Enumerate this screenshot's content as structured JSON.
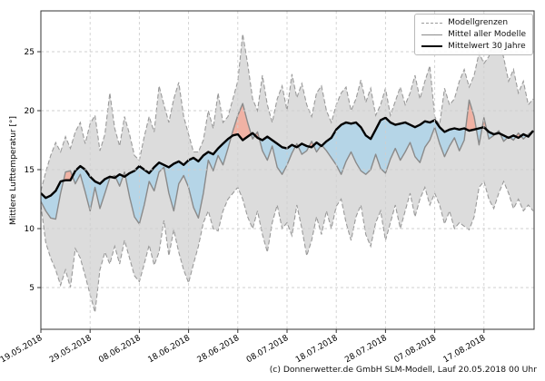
{
  "figure": {
    "copyright": "(c) Donnerwetter.de GmbH SLM-Modell, Lauf 20.05.2018 00 Uhr"
  },
  "chart_data": {
    "type": "line",
    "title": "",
    "xlabel": "",
    "ylabel": "Mittlere Lufttemperatur [°]",
    "ylim": [
      1.5,
      28.5
    ],
    "yticks": [
      5,
      10,
      15,
      20,
      25
    ],
    "grid": true,
    "x_start_label": "19.05.2018",
    "x_step_days": 1,
    "x_tick_day_index": [
      0,
      10,
      20,
      30,
      40,
      50,
      60,
      70,
      80,
      90
    ],
    "x_tick_labels": [
      "19.05.2018",
      "29.05.2018",
      "08.06.2018",
      "18.06.2018",
      "28.06.2018",
      "08.07.2018",
      "18.07.2018",
      "28.07.2018",
      "07.08.2018",
      "17.08.2018"
    ],
    "legend": {
      "position": "upper right",
      "entries": [
        {
          "label": "Modellgrenzen",
          "style": "dashed-gray"
        },
        {
          "label": "Mittel aller Modelle",
          "style": "solid-gray"
        },
        {
          "label": "Mittelwert 30 Jahre",
          "style": "solid-black-thick"
        }
      ]
    },
    "fills": {
      "band_color": "#dcdcdc",
      "above_normal_color": "#f0b2a4",
      "below_normal_color": "#b5d5e7"
    },
    "colors": {
      "bounds_line": "#9a9a9a",
      "model_mean_line": "#8a8a8a",
      "mean30_line": "#000000",
      "grid_line": "#cfcfcf",
      "axis_line": "#333333"
    },
    "series": [
      {
        "name": "Modellgrenze obere Grenze",
        "style": "dashed-gray",
        "values": [
          13.2,
          14.8,
          16.2,
          17.3,
          16.5,
          17.8,
          16.8,
          18.2,
          19.0,
          17.2,
          18.9,
          19.6,
          16.6,
          18.0,
          21.5,
          18.5,
          17.0,
          19.5,
          18.0,
          16.2,
          15.8,
          17.8,
          19.5,
          18.2,
          22.1,
          20.5,
          19.0,
          21.0,
          22.4,
          19.5,
          18.0,
          16.5,
          16.5,
          17.5,
          20.0,
          18.5,
          21.5,
          19.0,
          19.5,
          21.0,
          22.5,
          26.5,
          24.0,
          21.0,
          20.0,
          23.0,
          20.5,
          19.0,
          21.0,
          22.1,
          20.0,
          23.1,
          21.1,
          22.3,
          20.5,
          19.5,
          21.5,
          22.1,
          20.0,
          19.0,
          20.5,
          21.5,
          22.0,
          20.0,
          21.0,
          22.6,
          20.7,
          21.9,
          19.6,
          20.5,
          21.9,
          19.6,
          20.8,
          22.0,
          20.5,
          21.5,
          23.0,
          21.0,
          22.5,
          23.8,
          19.5,
          18.8,
          21.9,
          20.5,
          21.0,
          22.5,
          23.5,
          22.0,
          23.0,
          24.9,
          24.0,
          24.6,
          25.9,
          26.2,
          24.5,
          22.5,
          23.5,
          21.5,
          22.5,
          20.5,
          21.0
        ]
      },
      {
        "name": "Modellgrenze untere Grenze",
        "style": "dashed-gray",
        "values": [
          12.0,
          8.8,
          7.5,
          6.5,
          5.2,
          6.5,
          5.0,
          8.3,
          7.5,
          6.0,
          4.4,
          2.9,
          6.5,
          8.0,
          7.0,
          8.5,
          7.0,
          9.0,
          7.5,
          6.0,
          5.5,
          7.0,
          8.6,
          6.9,
          8.0,
          10.7,
          7.7,
          9.9,
          8.0,
          6.5,
          5.4,
          7.0,
          8.5,
          10.5,
          11.5,
          10.0,
          9.8,
          11.5,
          12.5,
          13.0,
          13.5,
          12.5,
          11.0,
          10.0,
          11.5,
          9.5,
          8.0,
          10.5,
          12.0,
          10.0,
          10.5,
          9.4,
          12.0,
          10.0,
          7.7,
          9.0,
          11.0,
          9.5,
          11.5,
          10.0,
          11.9,
          12.5,
          10.5,
          9.0,
          11.0,
          12.0,
          9.5,
          8.5,
          10.5,
          11.5,
          9.0,
          10.5,
          12.0,
          10.0,
          11.5,
          13.0,
          11.0,
          12.5,
          13.5,
          12.0,
          13.0,
          12.0,
          10.4,
          11.5,
          10.0,
          10.5,
          10.2,
          9.9,
          11.0,
          13.5,
          14.0,
          12.5,
          11.7,
          13.0,
          14.0,
          13.0,
          11.7,
          12.5,
          11.5,
          12.0,
          11.5
        ]
      },
      {
        "name": "Mittel aller Modelle",
        "style": "solid-gray",
        "values": [
          12.3,
          11.5,
          10.9,
          10.8,
          13.0,
          14.8,
          14.9,
          13.8,
          14.6,
          13.1,
          11.5,
          13.5,
          11.7,
          13.0,
          14.3,
          14.5,
          13.6,
          14.8,
          12.7,
          11.0,
          10.4,
          12.0,
          14.0,
          13.2,
          14.8,
          15.2,
          13.0,
          11.5,
          13.8,
          14.5,
          13.5,
          11.8,
          10.9,
          13.0,
          15.8,
          14.9,
          16.2,
          15.4,
          16.8,
          18.3,
          19.6,
          20.6,
          19.0,
          17.6,
          18.2,
          16.6,
          15.8,
          17.0,
          15.2,
          14.6,
          15.4,
          16.4,
          17.2,
          16.3,
          16.6,
          17.4,
          16.5,
          17.1,
          16.6,
          16.0,
          15.4,
          14.6,
          15.7,
          16.5,
          15.6,
          14.9,
          14.6,
          15.0,
          16.3,
          15.1,
          14.7,
          15.9,
          16.8,
          15.8,
          16.5,
          17.3,
          16.1,
          15.6,
          16.9,
          17.5,
          18.6,
          17.2,
          16.1,
          17.0,
          17.7,
          16.6,
          17.5,
          20.9,
          19.5,
          17.1,
          19.4,
          17.6,
          17.9,
          18.3,
          17.4,
          17.8,
          17.5,
          18.1,
          17.6,
          18.0,
          18.3
        ]
      },
      {
        "name": "Mittelwert 30 Jahre",
        "style": "solid-black-thick",
        "values": [
          13.0,
          12.6,
          12.8,
          13.2,
          14.0,
          14.1,
          14.1,
          14.9,
          15.3,
          15.0,
          14.4,
          14.0,
          13.8,
          14.2,
          14.4,
          14.3,
          14.6,
          14.4,
          14.7,
          14.9,
          15.3,
          15.0,
          14.7,
          15.2,
          15.6,
          15.4,
          15.2,
          15.5,
          15.7,
          15.4,
          15.8,
          16.0,
          15.7,
          16.2,
          16.5,
          16.3,
          16.8,
          17.2,
          17.6,
          17.9,
          18.0,
          17.5,
          17.8,
          18.1,
          17.7,
          17.5,
          17.8,
          17.5,
          17.2,
          16.9,
          16.8,
          17.1,
          16.9,
          17.2,
          17.0,
          16.9,
          17.3,
          17.0,
          17.4,
          17.7,
          18.4,
          18.8,
          19.0,
          18.9,
          19.0,
          18.6,
          17.9,
          17.6,
          18.4,
          19.2,
          19.4,
          19.0,
          18.8,
          18.9,
          19.0,
          18.8,
          18.6,
          18.8,
          19.1,
          19.0,
          19.2,
          18.6,
          18.2,
          18.4,
          18.5,
          18.4,
          18.5,
          18.3,
          18.4,
          18.5,
          18.6,
          18.2,
          18.0,
          18.1,
          17.9,
          17.7,
          17.9,
          17.7,
          18.0,
          17.8,
          18.3
        ]
      }
    ]
  }
}
